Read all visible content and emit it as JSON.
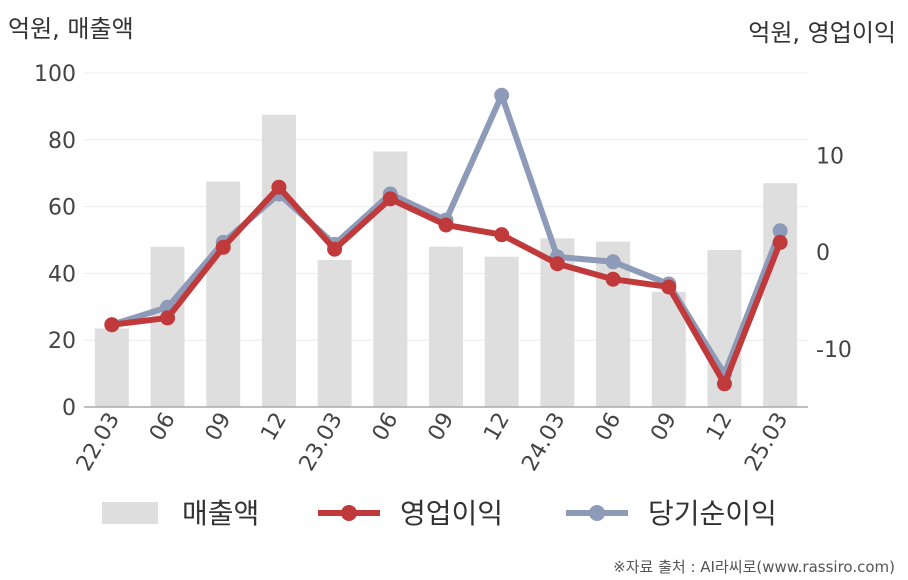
{
  "chart_data": {
    "type": "bar+line",
    "left_axis_title": "억원, 매출액",
    "right_axis_title": "억원, 영업이익",
    "categories": [
      "22.03",
      "06",
      "09",
      "12",
      "23.03",
      "06",
      "09",
      "12",
      "24.03",
      "06",
      "09",
      "12",
      "25.03"
    ],
    "left_ylim": [
      0,
      100
    ],
    "left_ticks": [
      "0",
      "20",
      "40",
      "60",
      "80",
      "100"
    ],
    "right_ylim": [
      -16,
      18.5
    ],
    "right_ticks": [
      "-10",
      "0",
      "10"
    ],
    "series": [
      {
        "name": "매출액",
        "type": "bar",
        "axis": "left",
        "color": "#dedede",
        "values": [
          23.5,
          48,
          67.5,
          87.5,
          44,
          76.5,
          48,
          45,
          50.5,
          49.5,
          34.5,
          47,
          67
        ]
      },
      {
        "name": "영업이익",
        "type": "line",
        "axis": "right",
        "color": "#c0393b",
        "values": [
          -7.5,
          -6.8,
          0.5,
          6.7,
          0.3,
          5.5,
          2.8,
          1.8,
          -1.2,
          -2.8,
          -3.6,
          -13.6,
          1.0
        ]
      },
      {
        "name": "당기순이익",
        "type": "line",
        "axis": "right",
        "color": "#8d9bb8",
        "values": [
          -7.5,
          -5.7,
          1.0,
          6.0,
          0.8,
          6.0,
          3.3,
          16.2,
          -0.5,
          -1.0,
          -3.3,
          -12.6,
          2.2
        ]
      }
    ],
    "grid": true,
    "legend_position": "bottom",
    "source_note": "※자료 출처 : AI라씨로(www.rassiro.com)"
  }
}
